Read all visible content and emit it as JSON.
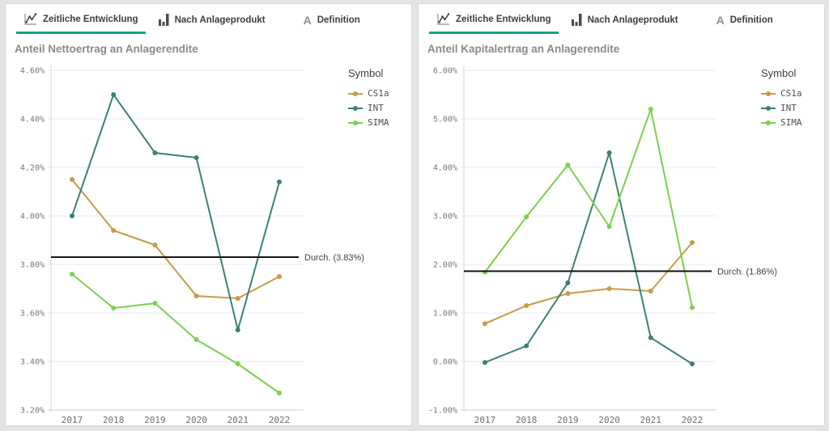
{
  "panels": [
    {
      "title": "Anteil Nettoertrag an Anlagerendite",
      "legend_title": "Symbol",
      "tabs": [
        {
          "label": "Zeitliche Entwicklung",
          "icon": "line-chart-icon",
          "active": true
        },
        {
          "label": "Nach Anlageprodukt",
          "icon": "bar-chart-icon",
          "active": false
        },
        {
          "label": "Definition",
          "icon": "letter-a-icon",
          "icon_glyph": "A",
          "active": false
        }
      ]
    },
    {
      "title": "Anteil Kapitalertrag an Anlagerendite",
      "legend_title": "Symbol",
      "tabs": [
        {
          "label": "Zeitliche Entwicklung",
          "icon": "line-chart-icon",
          "active": true
        },
        {
          "label": "Nach Anlageprodukt",
          "icon": "bar-chart-icon",
          "active": false
        },
        {
          "label": "Definition",
          "icon": "letter-a-icon",
          "icon_glyph": "A",
          "active": false
        }
      ]
    }
  ],
  "chart_data": [
    {
      "type": "line",
      "title": "Anteil Nettoertrag an Anlagerendite",
      "x": [
        "2017",
        "2018",
        "2019",
        "2020",
        "2021",
        "2022"
      ],
      "series": [
        {
          "name": "CS1a",
          "color": "#cb9a42",
          "values": [
            4.15,
            3.94,
            3.88,
            3.67,
            3.66,
            3.75
          ]
        },
        {
          "name": "INT",
          "color": "#3b8370",
          "values": [
            4.0,
            4.5,
            4.26,
            4.24,
            3.53,
            4.14
          ]
        },
        {
          "name": "SIMA",
          "color": "#79d14d",
          "values": [
            3.76,
            3.62,
            3.64,
            3.49,
            3.39,
            3.27
          ]
        }
      ],
      "ylim": [
        3.2,
        4.6
      ],
      "yticks": [
        "4.60%",
        "4.40%",
        "4.20%",
        "4.00%",
        "3.80%",
        "3.60%",
        "3.40%",
        "3.20%"
      ],
      "average": {
        "value": 3.83,
        "label": "Durch. (3.83%)"
      },
      "grid": true,
      "legend_position": "right"
    },
    {
      "type": "line",
      "title": "Anteil Kapitalertrag an Anlagerendite",
      "x": [
        "2017",
        "2018",
        "2019",
        "2020",
        "2021",
        "2022"
      ],
      "series": [
        {
          "name": "CS1a",
          "color": "#cb9a42",
          "values": [
            0.78,
            1.15,
            1.4,
            1.5,
            1.45,
            2.45
          ]
        },
        {
          "name": "INT",
          "color": "#3b8370",
          "values": [
            -0.02,
            0.32,
            1.62,
            4.3,
            0.49,
            -0.05
          ]
        },
        {
          "name": "SIMA",
          "color": "#79d14d",
          "values": [
            1.84,
            2.98,
            4.05,
            2.78,
            5.2,
            1.11
          ]
        }
      ],
      "ylim": [
        -1.0,
        6.0
      ],
      "yticks": [
        "6.00%",
        "5.00%",
        "4.00%",
        "3.00%",
        "2.00%",
        "1.00%",
        "0.00%",
        "-1.00%"
      ],
      "average": {
        "value": 1.86,
        "label": "Durch. (1.86%)"
      },
      "grid": true,
      "legend_position": "right"
    }
  ],
  "colors": {
    "accent_underline": "#12a284",
    "average_line": "#141414",
    "card_background": "#ffffff",
    "page_background": "#e4e4e4",
    "gridline": "#e9e9e9"
  }
}
